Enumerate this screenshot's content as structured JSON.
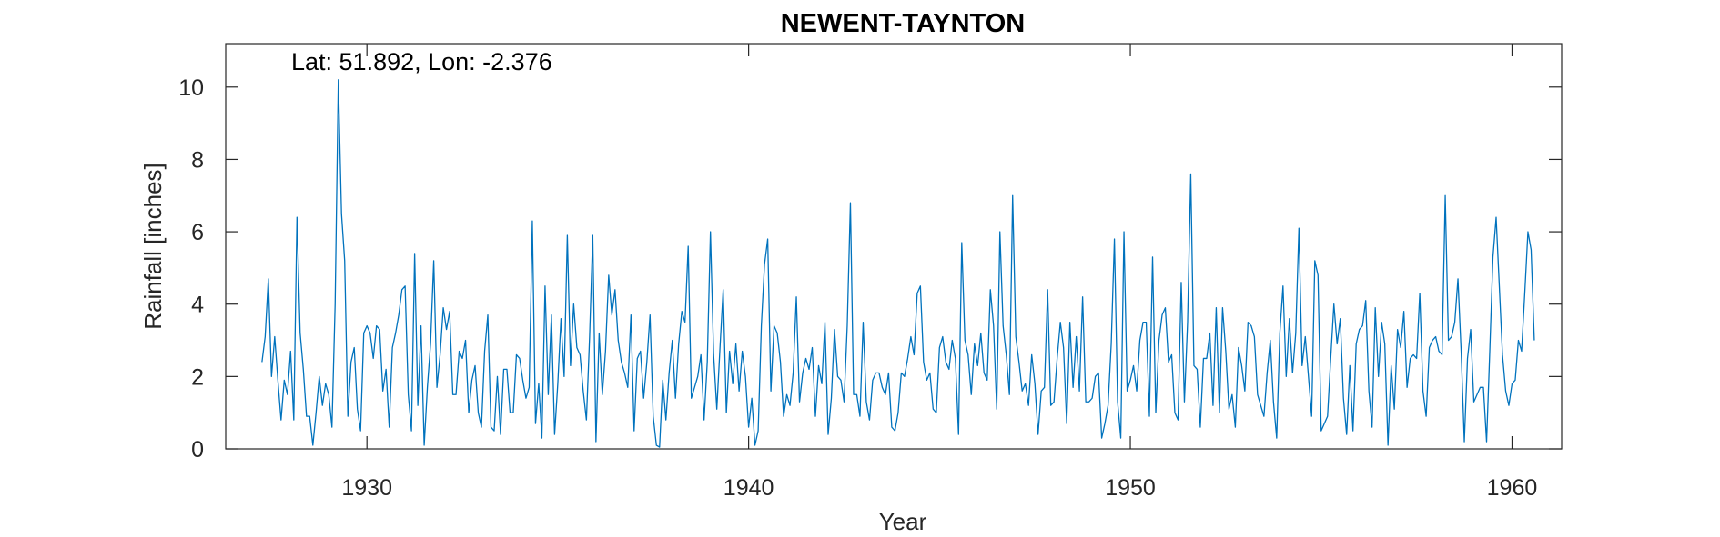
{
  "chart_data": {
    "type": "line",
    "title": "NEWENT-TAYNTON",
    "annotation": "Lat: 51.892, Lon: -2.376",
    "xlabel": "Year",
    "ylabel": "Rainfall [inches]",
    "xlim": [
      1926.3,
      1961.3
    ],
    "ylim": [
      0,
      11.2
    ],
    "xticks": [
      1930,
      1940,
      1950,
      1960
    ],
    "yticks": [
      0,
      2,
      4,
      6,
      8,
      10
    ],
    "grid": false,
    "line_color": "#0072BD",
    "series": [
      {
        "x_start": 1927.25,
        "x_step": 0.0833333,
        "values": [
          2.4,
          3.1,
          4.7,
          2.0,
          3.1,
          1.9,
          0.8,
          1.9,
          1.5,
          2.7,
          0.8,
          6.4,
          3.2,
          2.2,
          0.9,
          0.9,
          0.1,
          1.0,
          2.0,
          1.2,
          1.8,
          1.5,
          0.6,
          4.0,
          10.2,
          6.5,
          5.2,
          0.9,
          2.4,
          2.8,
          1.1,
          0.5,
          3.2,
          3.4,
          3.2,
          2.5,
          3.4,
          3.3,
          1.6,
          2.2,
          0.6,
          2.8,
          3.2,
          3.7,
          4.4,
          4.5,
          1.5,
          0.5,
          5.4,
          1.2,
          3.4,
          0.1,
          1.7,
          2.9,
          5.2,
          1.7,
          2.6,
          3.9,
          3.3,
          3.8,
          1.5,
          1.5,
          2.7,
          2.5,
          3.0,
          1.0,
          1.9,
          2.3,
          1.0,
          0.6,
          2.7,
          3.7,
          0.6,
          0.5,
          2.0,
          0.4,
          2.2,
          2.2,
          1.0,
          1.0,
          2.6,
          2.5,
          1.9,
          1.4,
          1.7,
          6.3,
          0.7,
          1.8,
          0.3,
          4.5,
          1.5,
          3.7,
          0.4,
          1.8,
          3.6,
          2.0,
          5.9,
          2.3,
          4.0,
          2.8,
          2.6,
          1.6,
          0.8,
          3.1,
          5.9,
          0.2,
          3.2,
          1.5,
          2.7,
          4.8,
          3.7,
          4.4,
          3.0,
          2.4,
          2.1,
          1.7,
          3.7,
          0.5,
          2.5,
          2.7,
          1.4,
          2.4,
          3.7,
          0.9,
          0.1,
          0.05,
          1.9,
          0.8,
          2.1,
          3.0,
          1.4,
          2.9,
          3.8,
          3.5,
          5.6,
          1.4,
          1.7,
          2.0,
          2.6,
          0.8,
          2.4,
          6.0,
          2.6,
          1.1,
          2.8,
          4.4,
          1.0,
          2.7,
          1.8,
          2.9,
          1.6,
          2.7,
          2.0,
          0.6,
          1.4,
          0.1,
          0.5,
          3.4,
          5.1,
          5.8,
          1.6,
          3.4,
          3.2,
          2.4,
          0.9,
          1.5,
          1.2,
          2.1,
          4.2,
          1.3,
          2.1,
          2.5,
          2.2,
          2.8,
          0.9,
          2.3,
          1.8,
          3.5,
          0.4,
          1.4,
          3.3,
          2.0,
          1.9,
          1.3,
          3.4,
          6.8,
          1.5,
          1.5,
          0.9,
          3.5,
          1.3,
          0.8,
          1.9,
          2.1,
          2.1,
          1.7,
          1.5,
          2.1,
          0.6,
          0.5,
          1.0,
          2.1,
          2.0,
          2.5,
          3.1,
          2.6,
          4.3,
          4.5,
          2.4,
          1.9,
          2.1,
          1.1,
          1.0,
          2.8,
          3.1,
          2.4,
          2.2,
          3.0,
          2.5,
          0.4,
          5.7,
          3.0,
          2.6,
          1.5,
          2.9,
          2.3,
          3.2,
          2.1,
          1.9,
          4.4,
          3.4,
          1.1,
          6.0,
          3.4,
          2.6,
          1.5,
          7.0,
          3.1,
          2.4,
          1.6,
          1.8,
          1.2,
          2.6,
          1.8,
          0.4,
          1.6,
          1.7,
          4.4,
          1.2,
          1.3,
          2.5,
          3.5,
          2.8,
          0.7,
          3.5,
          1.7,
          3.1,
          1.6,
          4.2,
          1.3,
          1.3,
          1.4,
          2.0,
          2.1,
          0.3,
          0.7,
          1.2,
          2.9,
          5.8,
          1.3,
          0.3,
          6.0,
          1.6,
          1.9,
          2.3,
          1.6,
          3.0,
          3.5,
          3.5,
          0.9,
          5.3,
          1.0,
          3.0,
          3.7,
          3.9,
          2.4,
          2.6,
          1.0,
          0.8,
          4.6,
          1.3,
          3.5,
          7.6,
          2.3,
          2.2,
          0.6,
          2.5,
          2.5,
          3.2,
          1.2,
          3.9,
          1.0,
          3.9,
          2.7,
          1.1,
          1.5,
          0.6,
          2.8,
          2.3,
          1.6,
          3.5,
          3.4,
          3.1,
          1.5,
          1.2,
          0.9,
          2.1,
          3.0,
          1.3,
          0.3,
          3.2,
          4.5,
          2.0,
          3.6,
          2.1,
          3.2,
          6.1,
          2.3,
          3.1,
          2.0,
          0.9,
          5.2,
          4.8,
          0.5,
          0.7,
          0.9,
          2.5,
          4.0,
          2.9,
          3.6,
          1.4,
          0.4,
          2.3,
          0.5,
          2.9,
          3.3,
          3.4,
          4.1,
          1.6,
          0.6,
          3.9,
          2.0,
          3.5,
          2.9,
          0.1,
          2.3,
          1.1,
          3.3,
          2.8,
          3.8,
          1.7,
          2.5,
          2.6,
          2.5,
          4.3,
          1.6,
          0.9,
          2.8,
          3.0,
          3.1,
          2.7,
          2.6,
          7.0,
          3.0,
          3.1,
          3.5,
          4.7,
          2.7,
          0.2,
          2.5,
          3.3,
          1.3,
          1.5,
          1.7,
          1.7,
          0.2,
          2.7,
          5.3,
          6.4,
          4.5,
          2.6,
          1.6,
          1.2,
          1.8,
          1.9,
          3.0,
          2.7,
          4.3,
          6.0,
          5.5,
          3.0
        ]
      }
    ]
  }
}
